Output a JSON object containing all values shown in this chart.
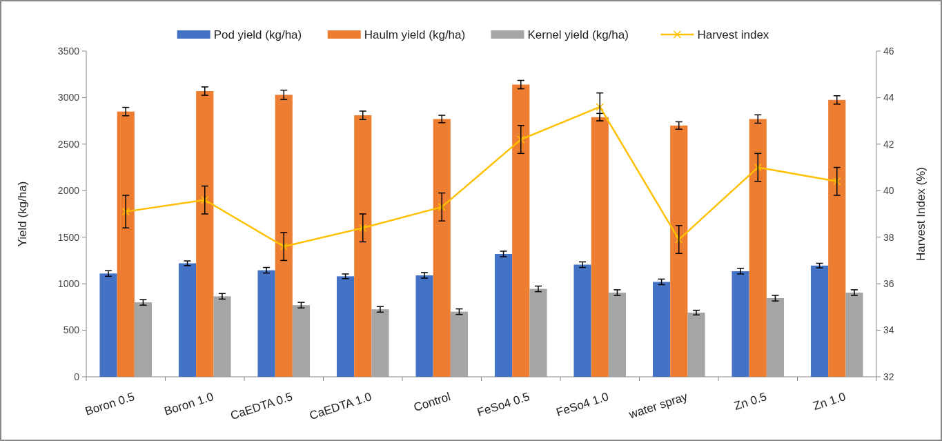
{
  "chart_data": {
    "type": "bar",
    "ylabel": "Yield (kg/ha)",
    "y2label": "Harvest Index (%)",
    "categories": [
      "Boron 0.5",
      "Boron 1.0",
      "CaEDTA 0.5",
      "CaEDTA 1.0",
      "Control",
      "FeSo4 0.5",
      "FeSo4 1.0",
      "water spray",
      "Zn 0.5",
      "Zn 1.0"
    ],
    "series": [
      {
        "name": "Pod yield (kg/ha)",
        "color": "#4472c4",
        "values": [
          1110,
          1220,
          1145,
          1080,
          1090,
          1320,
          1205,
          1020,
          1135,
          1195
        ],
        "errors": [
          30,
          25,
          30,
          25,
          30,
          30,
          30,
          30,
          30,
          25
        ]
      },
      {
        "name": "Haulm yield (kg/ha)",
        "color": "#ed7d31",
        "values": [
          2850,
          3070,
          3030,
          2810,
          2770,
          3140,
          2790,
          2700,
          2770,
          2975
        ],
        "errors": [
          45,
          45,
          50,
          45,
          40,
          45,
          40,
          40,
          45,
          45
        ]
      },
      {
        "name": "Kernel yield (kg/ha)",
        "color": "#a5a5a5",
        "values": [
          800,
          865,
          770,
          725,
          700,
          945,
          905,
          690,
          845,
          905
        ],
        "errors": [
          30,
          30,
          30,
          30,
          30,
          30,
          30,
          25,
          30,
          30
        ]
      },
      {
        "name": "Harvest index",
        "type": "line",
        "axis": "y2",
        "color": "#ffc000",
        "marker": "cross",
        "values": [
          39.1,
          39.6,
          37.6,
          38.4,
          39.3,
          42.2,
          43.6,
          37.9,
          41.0,
          40.4
        ],
        "errors": [
          0.7,
          0.6,
          0.6,
          0.6,
          0.6,
          0.6,
          0.6,
          0.6,
          0.6,
          0.6
        ]
      }
    ],
    "ylim": [
      0,
      3500
    ],
    "yticks": [
      0,
      500,
      1000,
      1500,
      2000,
      2500,
      3000,
      3500
    ],
    "y2lim": [
      32,
      46
    ],
    "y2ticks": [
      32,
      34,
      36,
      38,
      40,
      42,
      44,
      46
    ],
    "legend": "top",
    "grid": false
  }
}
